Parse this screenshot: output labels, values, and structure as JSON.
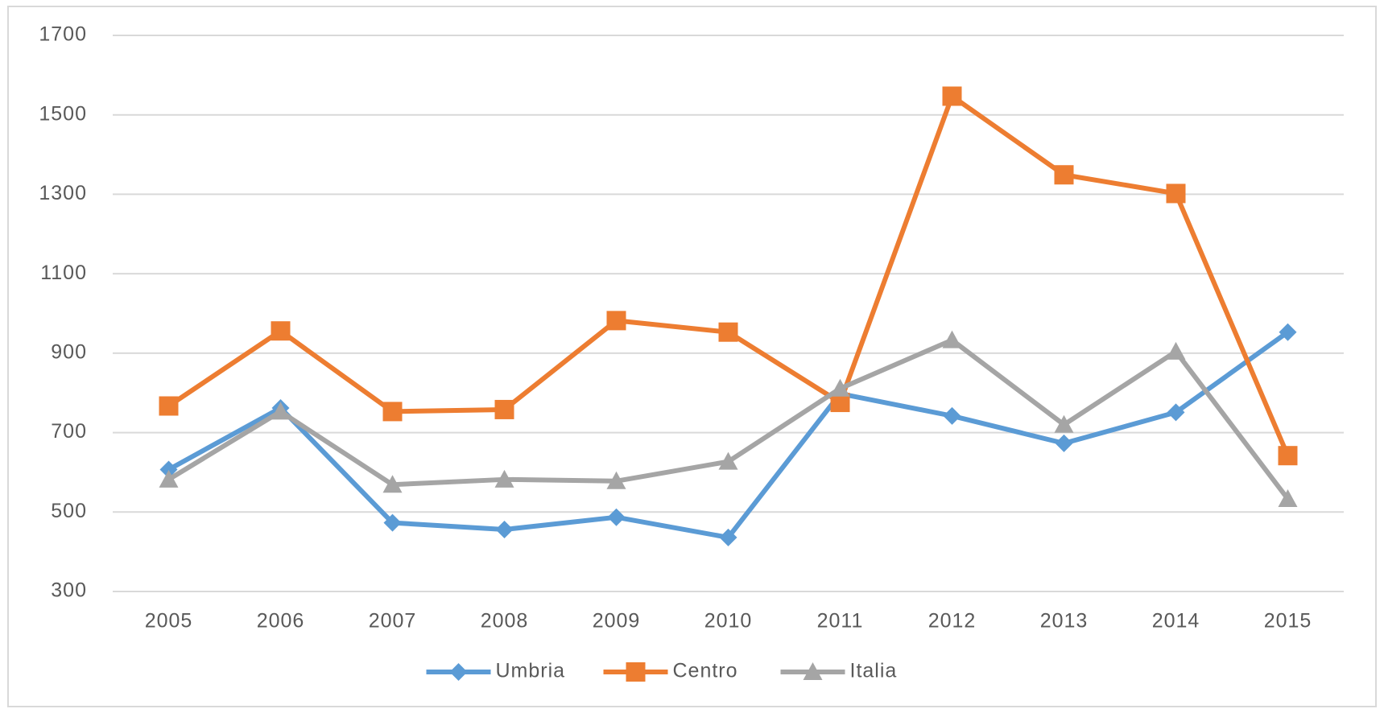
{
  "chart_data": {
    "type": "line",
    "categories": [
      "2005",
      "2006",
      "2007",
      "2008",
      "2009",
      "2010",
      "2011",
      "2012",
      "2013",
      "2014",
      "2015"
    ],
    "series": [
      {
        "name": "Umbria",
        "color": "#5b9bd5",
        "marker": "diamond",
        "values": [
          607,
          762,
          473,
          456,
          487,
          436,
          798,
          742,
          673,
          751,
          953
        ]
      },
      {
        "name": "Centro",
        "color": "#ed7d31",
        "marker": "square",
        "values": [
          767,
          956,
          753,
          758,
          982,
          953,
          776,
          1547,
          1349,
          1302,
          642
        ]
      },
      {
        "name": "Italia",
        "color": "#a5a5a5",
        "marker": "triangle",
        "values": [
          582,
          753,
          569,
          582,
          578,
          627,
          811,
          933,
          720,
          904,
          533
        ]
      }
    ],
    "ylim": [
      300,
      1700
    ],
    "yticks": [
      300,
      500,
      700,
      900,
      1100,
      1300,
      1500,
      1700
    ],
    "grid": true,
    "legend": "bottom"
  }
}
